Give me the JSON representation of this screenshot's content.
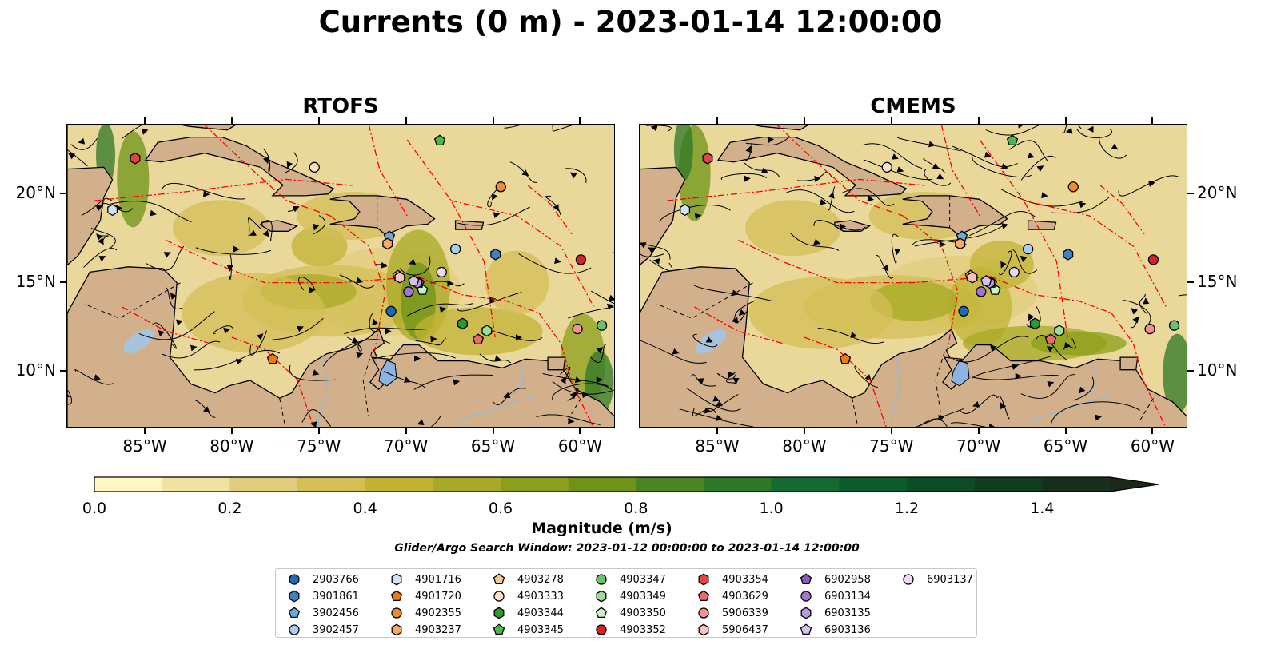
{
  "title": "Currents (0 m) - 2023-01-14 12:00:00",
  "panels": [
    {
      "title": "RTOFS"
    },
    {
      "title": "CMEMS"
    }
  ],
  "axes": {
    "lon_ticks": [
      "85°W",
      "80°W",
      "75°W",
      "70°W",
      "65°W",
      "60°W"
    ],
    "lat_ticks": [
      "20°N",
      "15°N",
      "10°N"
    ]
  },
  "colorbar": {
    "label": "Magnitude (m/s)",
    "ticks": [
      "0.0",
      "0.2",
      "0.4",
      "0.6",
      "0.8",
      "1.0",
      "1.2",
      "1.4"
    ],
    "colors": [
      "#fef7c1",
      "#f1e29f",
      "#e2cd7d",
      "#d3bf56",
      "#c2b333",
      "#a8a926",
      "#8b9f1a",
      "#6e9316",
      "#4b8420",
      "#2d7726",
      "#136b31",
      "#0b5c2c",
      "#0b4b26",
      "#123c20",
      "#172f1b",
      "#1b2918"
    ]
  },
  "search_window": "Glider/Argo Search Window: 2023-01-12 00:00:00 to 2023-01-14 12:00:00",
  "legend": [
    {
      "id": "2903766",
      "marker": "circle",
      "color": "#1f6bb8"
    },
    {
      "id": "3901861",
      "marker": "hexagon",
      "color": "#3c82c4"
    },
    {
      "id": "3902456",
      "marker": "pentagon",
      "color": "#6aa8de"
    },
    {
      "id": "3902457",
      "marker": "circle",
      "color": "#a9cef0"
    },
    {
      "id": "4901716",
      "marker": "hexagon",
      "color": "#cfe4f7"
    },
    {
      "id": "4901720",
      "marker": "pentagon",
      "color": "#f07a12"
    },
    {
      "id": "4902355",
      "marker": "circle",
      "color": "#f58a2a"
    },
    {
      "id": "4903237",
      "marker": "hexagon",
      "color": "#fba75e"
    },
    {
      "id": "4903278",
      "marker": "pentagon",
      "color": "#fcc690"
    },
    {
      "id": "4903333",
      "marker": "circle",
      "color": "#fde1c2"
    },
    {
      "id": "4903344",
      "marker": "hexagon",
      "color": "#2c9a2c"
    },
    {
      "id": "4903345",
      "marker": "pentagon",
      "color": "#4cb84a"
    },
    {
      "id": "4903347",
      "marker": "circle",
      "color": "#6cc26a"
    },
    {
      "id": "4903349",
      "marker": "hexagon",
      "color": "#9fdc96"
    },
    {
      "id": "4903350",
      "marker": "pentagon",
      "color": "#c8f2c0"
    },
    {
      "id": "4903352",
      "marker": "circle",
      "color": "#d62225"
    },
    {
      "id": "4903354",
      "marker": "hexagon",
      "color": "#e04447"
    },
    {
      "id": "4903629",
      "marker": "pentagon",
      "color": "#ea6b6d"
    },
    {
      "id": "5906339",
      "marker": "circle",
      "color": "#f39293"
    },
    {
      "id": "5906437",
      "marker": "hexagon",
      "color": "#f8c2c0"
    },
    {
      "id": "6902958",
      "marker": "pentagon",
      "color": "#8a5cc2"
    },
    {
      "id": "6903134",
      "marker": "circle",
      "color": "#a077cf"
    },
    {
      "id": "6903135",
      "marker": "hexagon",
      "color": "#bb9ade"
    },
    {
      "id": "6903136",
      "marker": "pentagon",
      "color": "#d6c0ee"
    },
    {
      "id": "6903137",
      "marker": "circle",
      "color": "#ead9f7"
    }
  ],
  "floats": [
    {
      "id": "2903766",
      "lon": -70.9,
      "lat": 13.4
    },
    {
      "id": "3901861",
      "lon": -64.9,
      "lat": 16.6
    },
    {
      "id": "3902456",
      "lon": -71.0,
      "lat": 17.6
    },
    {
      "id": "3902457",
      "lon": -67.2,
      "lat": 16.9
    },
    {
      "id": "4901716",
      "lon": -86.9,
      "lat": 19.1
    },
    {
      "id": "4901720",
      "lon": -77.7,
      "lat": 10.7
    },
    {
      "id": "4902355",
      "lon": -64.6,
      "lat": 20.4
    },
    {
      "id": "4903237",
      "lon": -71.1,
      "lat": 17.2
    },
    {
      "id": "4903278",
      "lon": -70.5,
      "lat": 15.4
    },
    {
      "id": "4903333",
      "lon": -75.3,
      "lat": 21.5
    },
    {
      "id": "4903344",
      "lon": -66.8,
      "lat": 12.7
    },
    {
      "id": "4903345",
      "lon": -68.1,
      "lat": 23.0
    },
    {
      "id": "4903347",
      "lon": -58.8,
      "lat": 12.6
    },
    {
      "id": "4903349",
      "lon": -65.4,
      "lat": 12.3
    },
    {
      "id": "4903350",
      "lon": -69.1,
      "lat": 14.6
    },
    {
      "id": "4903352",
      "lon": -60.0,
      "lat": 16.3
    },
    {
      "id": "4903354",
      "lon": -85.6,
      "lat": 22.0
    },
    {
      "id": "4903629",
      "lon": -65.9,
      "lat": 11.8
    },
    {
      "id": "5906339",
      "lon": -60.2,
      "lat": 12.4
    },
    {
      "id": "5906437",
      "lon": -70.4,
      "lat": 15.3
    },
    {
      "id": "6902958",
      "lon": -69.3,
      "lat": 15.0
    },
    {
      "id": "6903134",
      "lon": -69.9,
      "lat": 14.5
    },
    {
      "id": "6903135",
      "lon": -69.4,
      "lat": 15.0
    },
    {
      "id": "6903136",
      "lon": -69.6,
      "lat": 15.1
    },
    {
      "id": "6903137",
      "lon": -68.0,
      "lat": 15.6
    }
  ],
  "map": {
    "lon_range": [
      -89.5,
      -58.0
    ],
    "lat_range": [
      6.8,
      23.9
    ],
    "land_color": "#d2b08c",
    "water_base_color": "#ead79a",
    "eez_line_color": "#ff0000"
  }
}
